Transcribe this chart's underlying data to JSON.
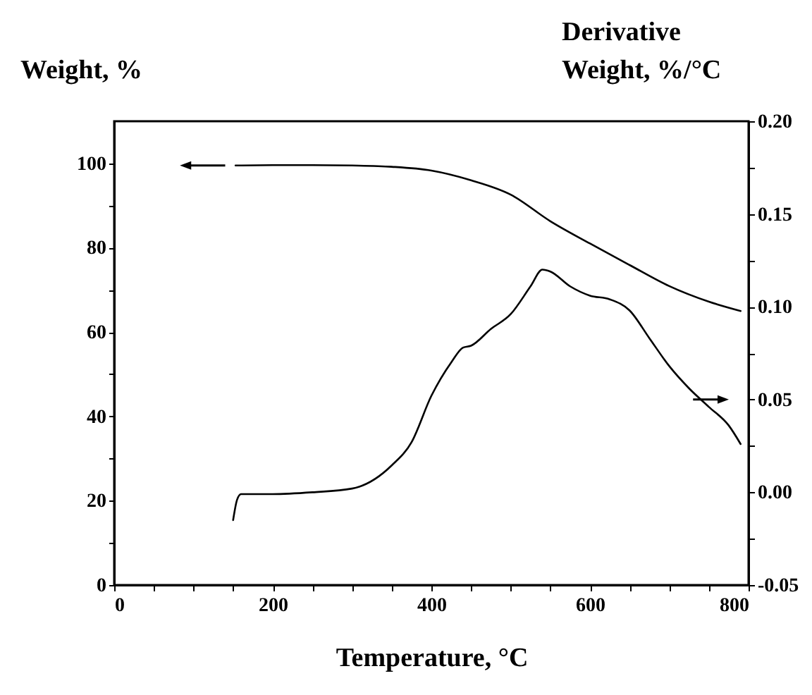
{
  "chart_data": {
    "type": "line",
    "xlabel": "Temperature, °C",
    "ylabel": "Weight, %",
    "y2label": "Derivative\nWeight, %/°C",
    "xlim": [
      0,
      800
    ],
    "xticks": [
      0,
      {
        "value": 50,
        "label": null
      },
      {
        "value": 100,
        "label": null
      },
      {
        "value": 150,
        "label": null
      },
      200,
      {
        "value": 250,
        "label": null
      },
      {
        "value": 300,
        "label": null
      },
      {
        "value": 350,
        "label": null
      },
      400,
      {
        "value": 450,
        "label": null
      },
      {
        "value": 500,
        "label": null
      },
      {
        "value": 550,
        "label": null
      },
      600,
      {
        "value": 650,
        "label": null
      },
      {
        "value": 700,
        "label": null
      },
      {
        "value": 750,
        "label": null
      },
      800
    ],
    "ylim": [
      0,
      110
    ],
    "yticks": [
      0,
      {
        "value": 10,
        "label": null
      },
      20,
      {
        "value": 30,
        "label": null
      },
      40,
      {
        "value": 50,
        "label": null
      },
      60,
      {
        "value": 70,
        "label": null
      },
      80,
      {
        "value": 90,
        "label": null
      },
      100
    ],
    "y2lim": [
      -0.05,
      0.2
    ],
    "y2ticks": [
      {
        "value": -0.05,
        "label": "-0.05"
      },
      {
        "value": -0.025,
        "label": null
      },
      {
        "value": 0,
        "label": "0.00"
      },
      {
        "value": 0.025,
        "label": null
      },
      {
        "value": 0.05,
        "label": "0.05"
      },
      {
        "value": 0.075,
        "label": null
      },
      {
        "value": 0.1,
        "label": "0.10"
      },
      {
        "value": 0.125,
        "label": null
      },
      {
        "value": 0.15,
        "label": "0.15"
      },
      {
        "value": 0.175,
        "label": null
      },
      {
        "value": 0.2,
        "label": "0.20"
      }
    ],
    "grid": false,
    "marker": "none",
    "line_style": "solid",
    "series": [
      {
        "color": "#000000",
        "x": [
          153,
          200,
          250,
          300,
          350,
          400,
          450,
          500,
          550,
          600,
          650,
          700,
          750,
          790
        ],
        "values": [
          99.5,
          99.6,
          99.6,
          99.5,
          99.2,
          98.3,
          96,
          92.6,
          86.3,
          81,
          75.9,
          70.9,
          67.2,
          65
        ]
      },
      {
        "color": "#000000",
        "axis": "y2",
        "x": [
          150,
          155,
          160,
          200,
          250,
          300,
          350,
          375,
          400,
          425,
          440,
          450,
          475,
          500,
          525,
          540,
          550,
          575,
          600,
          625,
          650,
          675,
          700,
          725,
          750,
          775,
          790
        ],
        "values": [
          -0.015,
          -0.004,
          -0.001,
          -0.001,
          0,
          0.002,
          0.0145,
          0.027,
          0.052,
          0.07,
          0.078,
          0.079,
          0.088,
          0.096,
          0.111,
          0.12,
          0.119,
          0.111,
          0.106,
          0.104,
          0.098,
          0.083,
          0.068,
          0.056,
          0.046,
          0.036,
          0.026
        ]
      }
    ]
  }
}
